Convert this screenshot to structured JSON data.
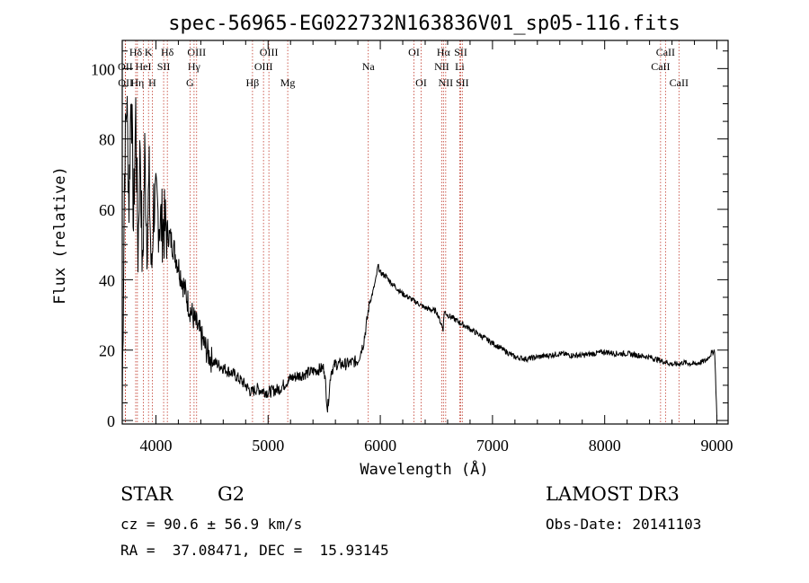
{
  "chart_data": {
    "type": "line",
    "title": "spec-56965-EG022732N163836V01_sp05-116.fits",
    "xlabel": "Wavelength (Å)",
    "ylabel": "Flux (relative)",
    "xlim": [
      3700,
      9100
    ],
    "ylim": [
      -1,
      108
    ],
    "x_ticks": [
      4000,
      5000,
      6000,
      7000,
      8000,
      9000
    ],
    "y_ticks": [
      0,
      20,
      40,
      60,
      80,
      100
    ],
    "series": [
      {
        "name": "flux",
        "color": "#000000",
        "x": [
          3700,
          3720,
          3740,
          3760,
          3780,
          3800,
          3820,
          3840,
          3860,
          3880,
          3900,
          3920,
          3940,
          3960,
          3980,
          4000,
          4050,
          4100,
          4150,
          4200,
          4250,
          4300,
          4350,
          4400,
          4450,
          4500,
          4600,
          4700,
          4800,
          4850,
          4900,
          5000,
          5100,
          5200,
          5300,
          5400,
          5500,
          5530,
          5560,
          5600,
          5700,
          5800,
          5850,
          5880,
          5900,
          5930,
          5960,
          5980,
          6000,
          6050,
          6100,
          6200,
          6300,
          6400,
          6500,
          6560,
          6570,
          6600,
          6700,
          6800,
          6900,
          7000,
          7100,
          7200,
          7300,
          7400,
          7500,
          7600,
          7700,
          7800,
          7900,
          8000,
          8100,
          8200,
          8300,
          8400,
          8500,
          8600,
          8650,
          8700,
          8800,
          8900,
          8950,
          8980,
          9000
        ],
        "y": [
          5,
          70,
          92,
          62,
          97,
          55,
          88,
          48,
          80,
          40,
          76,
          52,
          68,
          40,
          62,
          60,
          56,
          54,
          50,
          44,
          38,
          32,
          28,
          24,
          20,
          17,
          15,
          13,
          10,
          8,
          9,
          8,
          9,
          12,
          13,
          14,
          15,
          3,
          14,
          16,
          16,
          17,
          22,
          28,
          33,
          36,
          40,
          44,
          42,
          41,
          39,
          36,
          34,
          32,
          31,
          26,
          31,
          30,
          28,
          26,
          24,
          22,
          20,
          18,
          17.5,
          18,
          18.5,
          19,
          18.5,
          18.5,
          19,
          19.5,
          19,
          19,
          18.5,
          18,
          17,
          16,
          16,
          16.5,
          16,
          17,
          19,
          20,
          1
        ]
      }
    ],
    "line_markers": [
      {
        "label": "Hδ",
        "x": 3820,
        "row": 0
      },
      {
        "label": "K",
        "x": 3934,
        "row": 0
      },
      {
        "label": "Hδ",
        "x": 4102,
        "row": 0
      },
      {
        "label": "OIII",
        "x": 4363,
        "row": 0
      },
      {
        "label": "OIII",
        "x": 5007,
        "row": 0
      },
      {
        "label": "OI",
        "x": 6300,
        "row": 0
      },
      {
        "label": "Hα",
        "x": 6563,
        "row": 0
      },
      {
        "label": "SII",
        "x": 6717,
        "row": 0
      },
      {
        "label": "CaII",
        "x": 8542,
        "row": 0
      },
      {
        "label": "OII",
        "x": 3727,
        "row": 1
      },
      {
        "label": "HeI",
        "x": 3888,
        "row": 1
      },
      {
        "label": "SII",
        "x": 4069,
        "row": 1
      },
      {
        "label": "Hγ",
        "x": 4340,
        "row": 1
      },
      {
        "label": "OIII",
        "x": 4959,
        "row": 1
      },
      {
        "label": "Na",
        "x": 5893,
        "row": 1
      },
      {
        "label": "NII",
        "x": 6548,
        "row": 1
      },
      {
        "label": "Li",
        "x": 6708,
        "row": 1
      },
      {
        "label": "CaII",
        "x": 8498,
        "row": 1
      },
      {
        "label": "OII",
        "x": 3729,
        "row": 2
      },
      {
        "label": "Hη",
        "x": 3835,
        "row": 2
      },
      {
        "label": "H",
        "x": 3968,
        "row": 2
      },
      {
        "label": "G",
        "x": 4304,
        "row": 2
      },
      {
        "label": "Hβ",
        "x": 4861,
        "row": 2
      },
      {
        "label": "Mg",
        "x": 5175,
        "row": 2
      },
      {
        "label": "OI",
        "x": 6364,
        "row": 2
      },
      {
        "label": "NII",
        "x": 6583,
        "row": 2
      },
      {
        "label": "SII",
        "x": 6731,
        "row": 2
      },
      {
        "label": "CaII",
        "x": 8662,
        "row": 2
      }
    ]
  },
  "info": {
    "object_class": "STAR",
    "subclass": "G2",
    "survey": "LAMOST DR3",
    "cz": "cz = 90.6 ± 56.9 km/s",
    "obs_date": "Obs-Date: 20141103",
    "coords": "RA =  37.08471, DEC =  15.93145"
  }
}
